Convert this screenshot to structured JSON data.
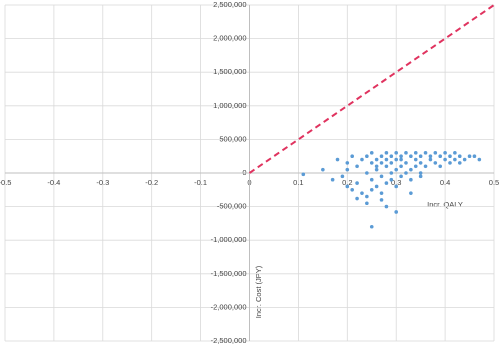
{
  "chart_data": {
    "type": "scatter",
    "xlabel": "Incr. QALY",
    "ylabel": "Incr. Cost (JPY)",
    "xlim": [
      -0.5,
      0.5
    ],
    "ylim": [
      -2500000,
      2500000
    ],
    "xticks": [
      -0.5,
      -0.4,
      -0.3,
      -0.2,
      -0.1,
      0,
      0.1,
      0.2,
      0.3,
      0.4,
      0.5
    ],
    "yticks": [
      {
        "value": -2500000,
        "label": "-2,500,000"
      },
      {
        "value": -2000000,
        "label": "-2,000,000"
      },
      {
        "value": -1500000,
        "label": "-1,500,000"
      },
      {
        "value": -1000000,
        "label": "-1,000,000"
      },
      {
        "value": -500000,
        "label": "-500,000"
      },
      0,
      {
        "value": 500000,
        "label": "500,000"
      },
      {
        "value": 1000000,
        "label": "1,000,000"
      },
      {
        "value": 1500000,
        "label": "1,500,000"
      },
      {
        "value": 2000000,
        "label": "2,000,000"
      },
      {
        "value": 2500000,
        "label": "2,500,000"
      }
    ],
    "grid": true,
    "series": [
      {
        "type": "line",
        "color": "#e0335f",
        "dashed": true,
        "x": [
          0,
          0.5
        ],
        "values": [
          0,
          2500000
        ]
      },
      {
        "type": "scatter",
        "color": "#5b9bd5",
        "x": [
          0.11,
          0.15,
          0.17,
          0.18,
          0.19,
          0.2,
          0.2,
          0.21,
          0.21,
          0.22,
          0.22,
          0.23,
          0.23,
          0.24,
          0.24,
          0.24,
          0.25,
          0.25,
          0.25,
          0.25,
          0.26,
          0.26,
          0.26,
          0.26,
          0.27,
          0.27,
          0.27,
          0.27,
          0.28,
          0.28,
          0.28,
          0.28,
          0.29,
          0.29,
          0.29,
          0.29,
          0.3,
          0.3,
          0.3,
          0.3,
          0.31,
          0.31,
          0.31,
          0.31,
          0.32,
          0.32,
          0.32,
          0.33,
          0.33,
          0.33,
          0.34,
          0.34,
          0.34,
          0.35,
          0.35,
          0.35,
          0.36,
          0.36,
          0.37,
          0.37,
          0.38,
          0.38,
          0.39,
          0.39,
          0.4,
          0.4,
          0.41,
          0.41,
          0.42,
          0.42,
          0.43,
          0.43,
          0.44,
          0.45,
          0.46,
          0.47,
          0.25,
          0.3,
          0.27,
          0.22,
          0.24,
          0.33,
          0.2,
          0.35,
          0.28
        ],
        "values": [
          -20000,
          50000,
          -100000,
          200000,
          -50000,
          150000,
          -200000,
          250000,
          -250000,
          100000,
          -150000,
          200000,
          -300000,
          250000,
          0,
          -350000,
          150000,
          -100000,
          300000,
          -250000,
          200000,
          50000,
          -200000,
          100000,
          250000,
          -50000,
          150000,
          -300000,
          300000,
          100000,
          -150000,
          200000,
          250000,
          0,
          -100000,
          150000,
          300000,
          50000,
          -200000,
          200000,
          250000,
          100000,
          -50000,
          200000,
          300000,
          150000,
          0,
          250000,
          50000,
          -100000,
          300000,
          200000,
          100000,
          250000,
          150000,
          -50000,
          300000,
          100000,
          250000,
          200000,
          300000,
          150000,
          250000,
          100000,
          300000,
          200000,
          250000,
          150000,
          300000,
          200000,
          250000,
          150000,
          200000,
          250000,
          250000,
          200000,
          -800000,
          -580000,
          -400000,
          -380000,
          -450000,
          -300000,
          50000,
          0,
          -500000
        ]
      }
    ]
  }
}
